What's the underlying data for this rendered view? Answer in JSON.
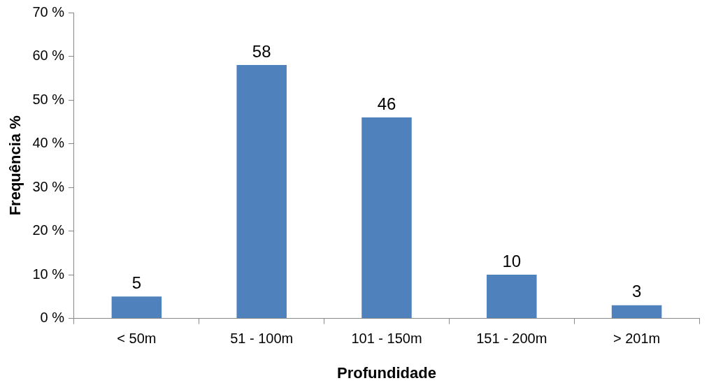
{
  "chart_data": {
    "type": "bar",
    "xlabel": "Profundidade",
    "ylabel": "Frequência %",
    "categories": [
      "< 50m",
      "51 - 100m",
      "101 - 150m",
      "151 - 200m",
      "> 201m"
    ],
    "values": [
      5,
      58,
      46,
      10,
      3
    ],
    "color": "#4f81bd",
    "data_labels": true,
    "grid": false,
    "legend": false,
    "ylim": [
      0,
      70
    ],
    "yticks": [
      {
        "value": 0,
        "label": "0 %"
      },
      {
        "value": 10,
        "label": "10 %"
      },
      {
        "value": 20,
        "label": "20 %"
      },
      {
        "value": 30,
        "label": "30 %"
      },
      {
        "value": 40,
        "label": "40 %"
      },
      {
        "value": 50,
        "label": "50 %"
      },
      {
        "value": 60,
        "label": "60 %"
      },
      {
        "value": 70,
        "label": "70 %"
      }
    ]
  }
}
